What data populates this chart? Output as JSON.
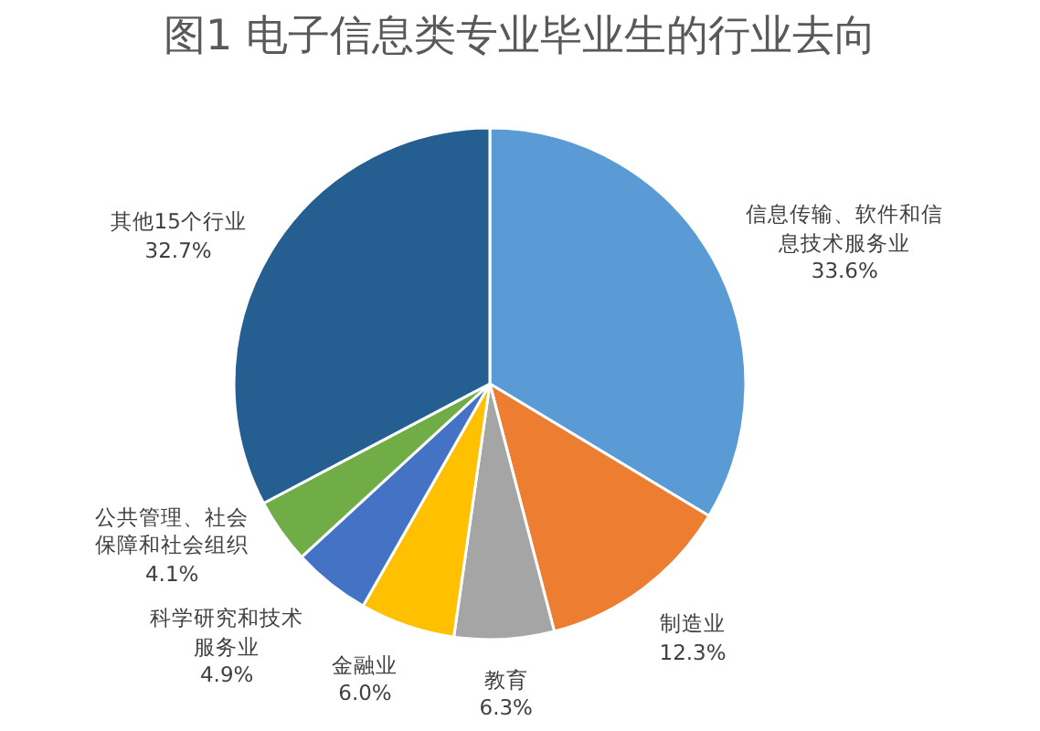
{
  "chart_data": {
    "type": "pie",
    "title": "图1 电子信息类专业毕业生的行业去向",
    "categories": [
      "信息传输、软件和信息技术服务业",
      "制造业",
      "教育",
      "金融业",
      "科学研究和技术服务业",
      "公共管理、社会保障和社会组织",
      "其他15个行业"
    ],
    "values": [
      33.6,
      12.3,
      6.3,
      6.0,
      4.9,
      4.1,
      32.7
    ],
    "colors": [
      "#5b9bd5",
      "#ed7d31",
      "#a5a5a5",
      "#ffc000",
      "#4472c4",
      "#70ad47",
      "#255e91"
    ],
    "value_labels": [
      "33.6%",
      "12.3%",
      "6.3%",
      "6.0%",
      "4.9%",
      "4.1%",
      "32.7%"
    ]
  }
}
